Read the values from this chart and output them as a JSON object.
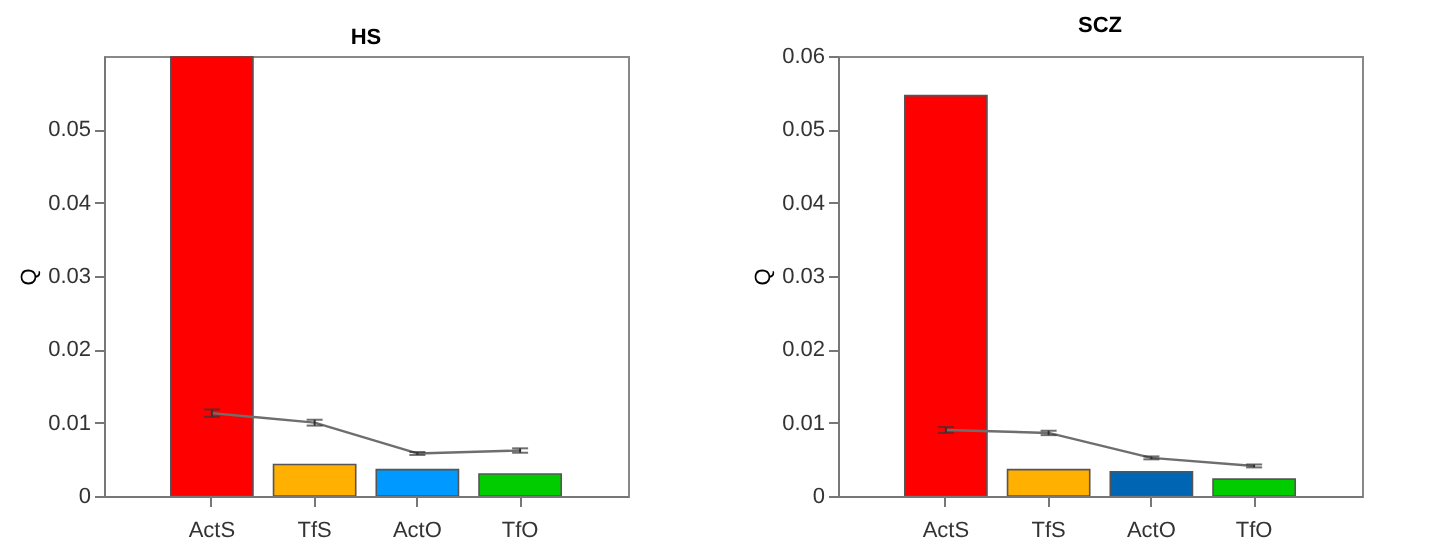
{
  "chart_data": [
    {
      "type": "bar",
      "title": "HS",
      "ylabel": "Q",
      "categories": [
        "ActS",
        "TfS",
        "ActO",
        "TfO"
      ],
      "ylim": [
        0,
        0.06
      ],
      "yticks": [
        0,
        0.01,
        0.02,
        0.03,
        0.04,
        0.05
      ],
      "grid": false,
      "legend": false,
      "series": [
        {
          "type": "bar",
          "colors": [
            "#ff0000",
            "#ffb000",
            "#0099ff",
            "#00cc00"
          ],
          "values": [
            0.06,
            0.0043,
            0.0036,
            0.003
          ]
        },
        {
          "type": "line",
          "color": "#6e6e6e",
          "marker": "none",
          "values": [
            0.0113,
            0.01,
            0.0058,
            0.0062
          ],
          "errors": [
            0.0005,
            0.0004,
            0.0002,
            0.0003
          ]
        }
      ]
    },
    {
      "type": "bar",
      "title": "SCZ",
      "ylabel": "Q",
      "categories": [
        "ActS",
        "TfS",
        "ActO",
        "TfO"
      ],
      "ylim": [
        0,
        0.06
      ],
      "yticks": [
        0,
        0.01,
        0.02,
        0.03,
        0.04,
        0.05,
        0.06
      ],
      "grid": false,
      "legend": false,
      "series": [
        {
          "type": "bar",
          "colors": [
            "#ff0000",
            "#ffb000",
            "#0066b3",
            "#00cc00"
          ],
          "values": [
            0.0546,
            0.0036,
            0.0033,
            0.0023
          ]
        },
        {
          "type": "line",
          "color": "#6e6e6e",
          "marker": "none",
          "values": [
            0.009,
            0.0086,
            0.0052,
            0.0041
          ],
          "errors": [
            0.0004,
            0.0003,
            0.0002,
            0.0002
          ]
        }
      ]
    }
  ]
}
